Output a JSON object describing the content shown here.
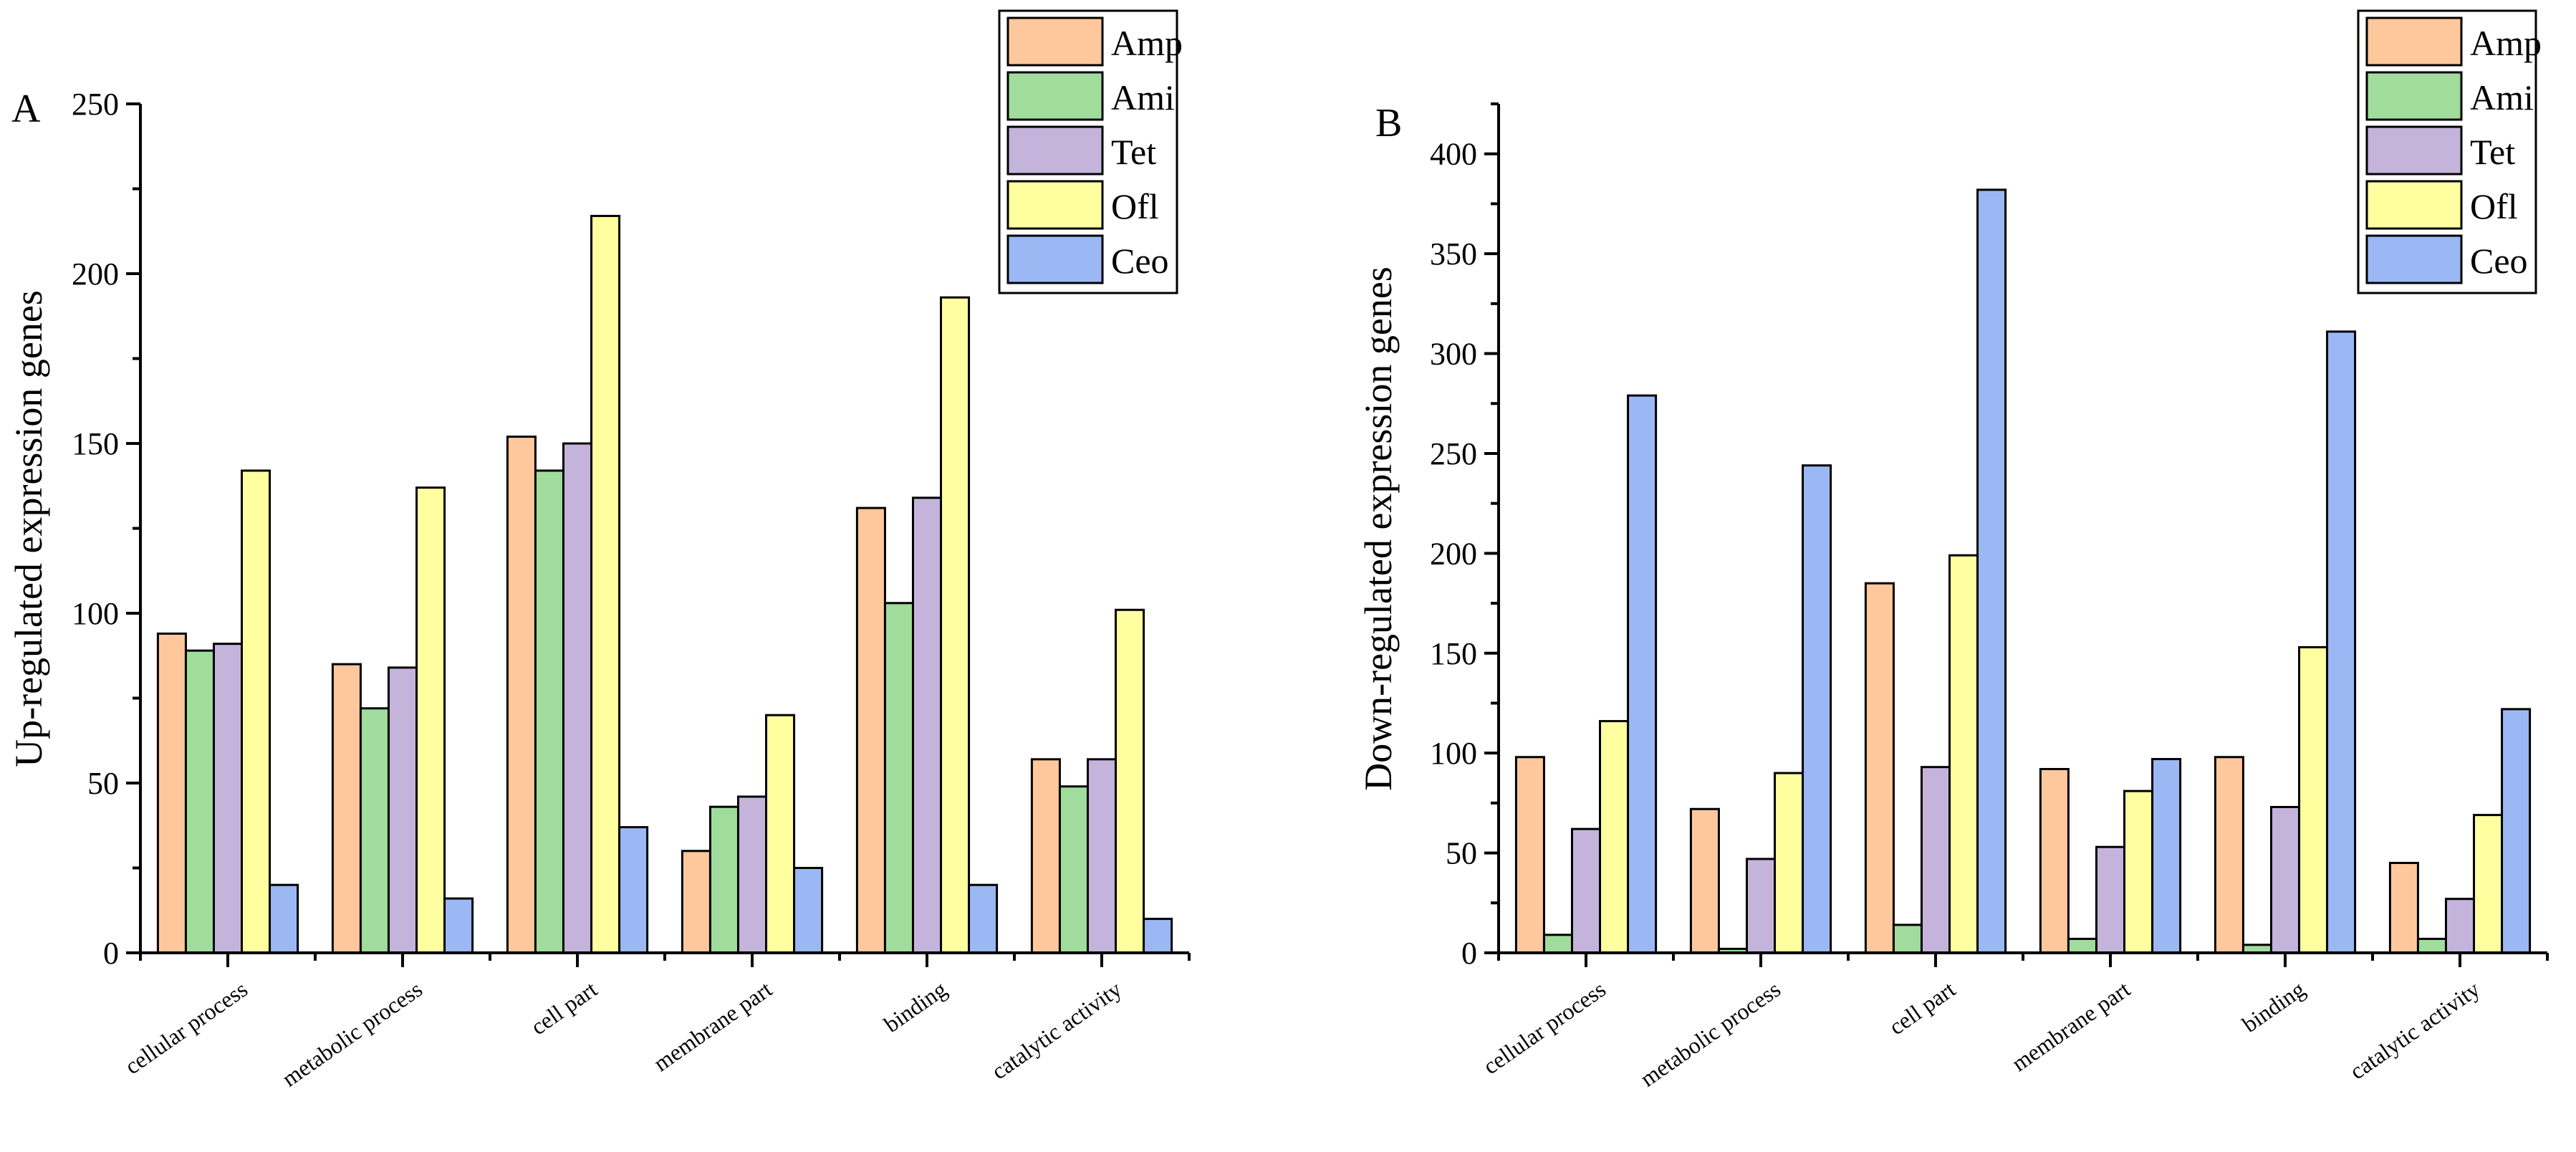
{
  "chart_data": [
    {
      "type": "bar",
      "panel_label": "A",
      "ylabel": "Up-regulated expression genes",
      "xlabel": "",
      "ylim": [
        0,
        250
      ],
      "yticks": [
        0,
        50,
        100,
        150,
        200,
        250
      ],
      "categories": [
        "cellular process",
        "metabolic process",
        "cell part",
        "membrane part",
        "binding",
        "catalytic activity"
      ],
      "series": [
        {
          "name": "Amp",
          "color": "#FFC89C",
          "values": [
            94,
            85,
            152,
            30,
            131,
            57
          ]
        },
        {
          "name": "Ami",
          "color": "#A0DC9C",
          "values": [
            89,
            72,
            142,
            43,
            103,
            49
          ]
        },
        {
          "name": "Tet",
          "color": "#C4B4DC",
          "values": [
            91,
            84,
            150,
            46,
            134,
            57
          ]
        },
        {
          "name": "Ofl",
          "color": "#FFFFA0",
          "values": [
            142,
            137,
            217,
            70,
            193,
            101
          ]
        },
        {
          "name": "Ceo",
          "color": "#9CB8F4",
          "values": [
            20,
            16,
            37,
            25,
            20,
            10
          ]
        }
      ],
      "legend_position": "top-right",
      "grid": false
    },
    {
      "type": "bar",
      "panel_label": "B",
      "ylabel": "Down-regulated expression genes",
      "xlabel": "",
      "ylim": [
        0,
        425
      ],
      "yticks": [
        0,
        50,
        100,
        150,
        200,
        250,
        300,
        350,
        400
      ],
      "categories": [
        "cellular process",
        "metabolic process",
        "cell part",
        "membrane part",
        "binding",
        "catalytic activity"
      ],
      "series": [
        {
          "name": "Amp",
          "color": "#FFC89C",
          "values": [
            98,
            72,
            185,
            92,
            98,
            45
          ]
        },
        {
          "name": "Ami",
          "color": "#A0DC9C",
          "values": [
            9,
            2,
            14,
            7,
            4,
            7
          ]
        },
        {
          "name": "Tet",
          "color": "#C4B4DC",
          "values": [
            62,
            47,
            93,
            53,
            73,
            27
          ]
        },
        {
          "name": "Ofl",
          "color": "#FFFFA0",
          "values": [
            116,
            90,
            199,
            81,
            153,
            69
          ]
        },
        {
          "name": "Ceo",
          "color": "#9CB8F4",
          "values": [
            279,
            244,
            382,
            97,
            311,
            122
          ]
        }
      ],
      "legend_position": "top-right",
      "grid": false
    }
  ]
}
